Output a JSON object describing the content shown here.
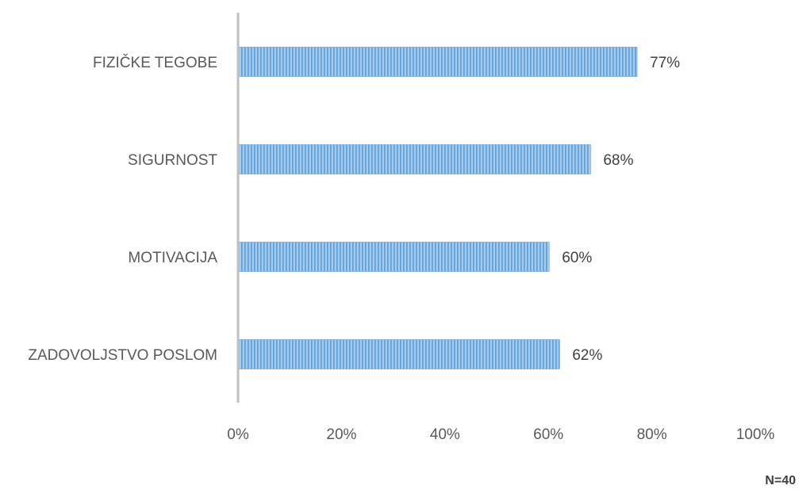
{
  "chart_data": {
    "type": "bar",
    "orientation": "horizontal",
    "categories": [
      "FIZIČKE TEGOBE",
      "SIGURNOST",
      "MOTIVACIJA",
      "ZADOVOLJSTVO POSLOM"
    ],
    "values": [
      77,
      68,
      60,
      62
    ],
    "data_labels": [
      "77%",
      "68%",
      "60%",
      "62%"
    ],
    "x_ticks": [
      "0%",
      "20%",
      "40%",
      "60%",
      "80%",
      "100%"
    ],
    "xlim": [
      0,
      100
    ],
    "grid": false,
    "legend": "none",
    "bar_color": "#9dc3e6",
    "bar_stripe_color": "#5b9bd5",
    "axis_color": "#bfbfbf"
  },
  "note": "N=40"
}
